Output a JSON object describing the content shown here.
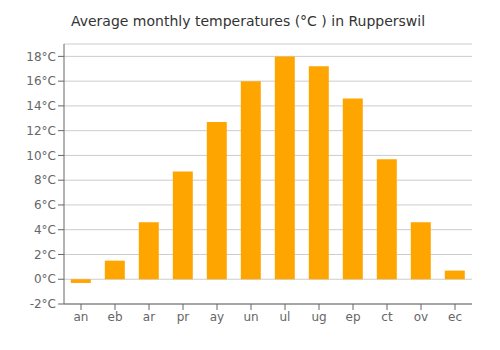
{
  "chart_data": {
    "type": "bar",
    "title": "Average monthly temperatures (°C ) in Rupperswil",
    "categories": [
      "an",
      "eb",
      "ar",
      "pr",
      "ay",
      "un",
      "ul",
      "ug",
      "ep",
      "ct",
      "ov",
      "ec"
    ],
    "values": [
      -0.3,
      1.5,
      4.6,
      8.7,
      12.7,
      16.0,
      18.0,
      17.2,
      14.6,
      9.7,
      4.6,
      0.7
    ],
    "color": "#FFA500",
    "ylim": [
      -2,
      19
    ],
    "yticks": [
      {
        "value": -2,
        "label": "-2°C"
      },
      {
        "value": 0,
        "label": "0°C"
      },
      {
        "value": 2,
        "label": "2°C"
      },
      {
        "value": 4,
        "label": "4°C"
      },
      {
        "value": 6,
        "label": "6°C"
      },
      {
        "value": 8,
        "label": "8°C"
      },
      {
        "value": 10,
        "label": "10°C"
      },
      {
        "value": 12,
        "label": "12°C"
      },
      {
        "value": 14,
        "label": "14°C"
      },
      {
        "value": 16,
        "label": "16°C"
      },
      {
        "value": 18,
        "label": "18°C"
      }
    ],
    "grid": true
  }
}
